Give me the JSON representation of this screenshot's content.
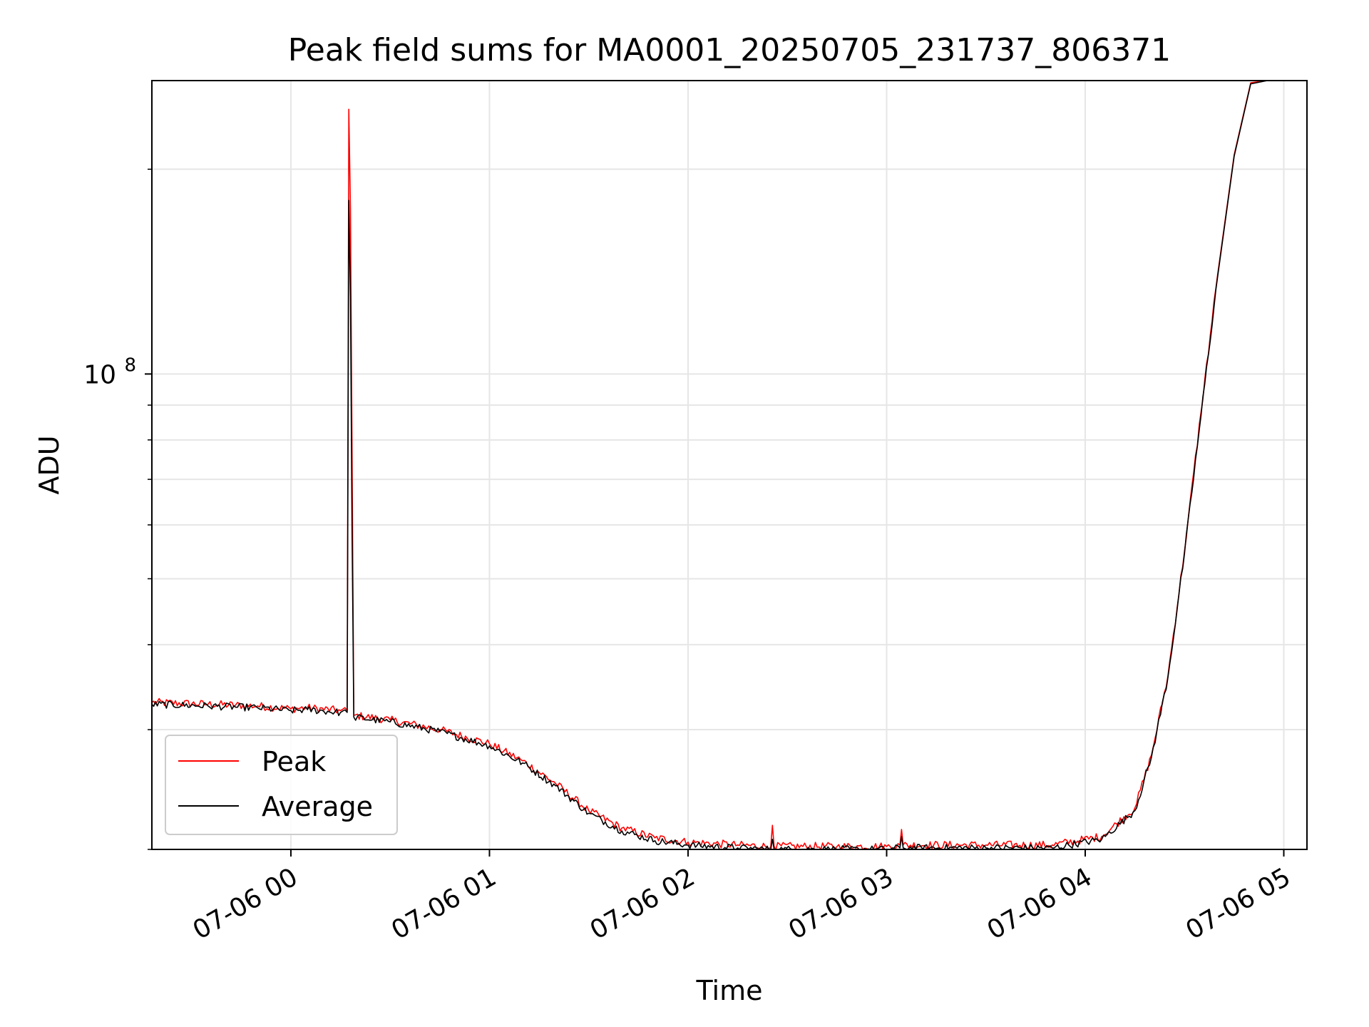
{
  "chart_data": {
    "type": "line",
    "title": "Peak field sums for MA0001_20250705_231737_806371",
    "xlabel": "Time",
    "ylabel": "ADU",
    "yscale": "log",
    "x_range": [
      "07-05 23:18",
      "07-06 05:07"
    ],
    "ylim": [
      20000000,
      270000000
    ],
    "x_ticks": [
      "07-06 00",
      "07-06 01",
      "07-06 02",
      "07-06 03",
      "07-06 04",
      "07-06 05"
    ],
    "y_ticks": [
      {
        "label_base": "10",
        "label_exp": "8",
        "value": 100000000
      }
    ],
    "grid": true,
    "legend_position": "lower-left",
    "series": [
      {
        "name": "Peak",
        "color": "#ff0000",
        "points": [
          [
            "07-05 23:18",
            32900000
          ],
          [
            "07-05 23:35",
            32700000
          ],
          [
            "07-05 23:50",
            32500000
          ],
          [
            "07-06 00:00",
            32200000
          ],
          [
            "07-06 00:05",
            32300000
          ],
          [
            "07-06 00:15",
            32000000
          ],
          [
            "07-06 00:17",
            32000000
          ],
          [
            "07-06 00:17:30",
            245000000
          ],
          [
            "07-06 00:18",
            175000000
          ],
          [
            "07-06 00:18:30",
            75000000
          ],
          [
            "07-06 00:19",
            31500000
          ],
          [
            "07-06 00:30",
            31000000
          ],
          [
            "07-06 00:45",
            30000000
          ],
          [
            "07-06 01:00",
            28600000
          ],
          [
            "07-06 01:10",
            27000000
          ],
          [
            "07-06 01:20",
            25000000
          ],
          [
            "07-06 01:30",
            22800000
          ],
          [
            "07-06 01:40",
            21500000
          ],
          [
            "07-06 01:50",
            20800000
          ],
          [
            "07-06 02:00",
            20500000
          ],
          [
            "07-06 02:15",
            20300000
          ],
          [
            "07-06 02:25",
            20200000
          ],
          [
            "07-06 02:25:30",
            21700000
          ],
          [
            "07-06 02:26",
            20200000
          ],
          [
            "07-06 02:45",
            20200000
          ],
          [
            "07-06 03:00",
            20200000
          ],
          [
            "07-06 03:04",
            20300000
          ],
          [
            "07-06 03:04:30",
            21400000
          ],
          [
            "07-06 03:05",
            20300000
          ],
          [
            "07-06 03:30",
            20300000
          ],
          [
            "07-06 03:50",
            20300000
          ],
          [
            "07-06 04:05",
            20900000
          ],
          [
            "07-06 04:15",
            23000000
          ],
          [
            "07-06 04:20",
            27500000
          ],
          [
            "07-06 04:25",
            36000000
          ],
          [
            "07-06 04:30",
            55000000
          ],
          [
            "07-06 04:35",
            88000000
          ],
          [
            "07-06 04:40",
            140000000
          ],
          [
            "07-06 04:45",
            210000000
          ],
          [
            "07-06 04:50",
            268000000
          ],
          [
            "07-06 04:55",
            270000000
          ]
        ]
      },
      {
        "name": "Average",
        "color": "#000000",
        "points": [
          [
            "07-05 23:18",
            32700000
          ],
          [
            "07-05 23:35",
            32500000
          ],
          [
            "07-05 23:50",
            32300000
          ],
          [
            "07-06 00:00",
            32000000
          ],
          [
            "07-06 00:05",
            32100000
          ],
          [
            "07-06 00:15",
            31800000
          ],
          [
            "07-06 00:17",
            31800000
          ],
          [
            "07-06 00:17:30",
            180000000
          ],
          [
            "07-06 00:18",
            130000000
          ],
          [
            "07-06 00:18:30",
            58000000
          ],
          [
            "07-06 00:19",
            31300000
          ],
          [
            "07-06 00:30",
            30800000
          ],
          [
            "07-06 00:45",
            29800000
          ],
          [
            "07-06 01:00",
            28400000
          ],
          [
            "07-06 01:10",
            26800000
          ],
          [
            "07-06 01:20",
            24800000
          ],
          [
            "07-06 01:30",
            22600000
          ],
          [
            "07-06 01:40",
            21300000
          ],
          [
            "07-06 01:50",
            20600000
          ],
          [
            "07-06 02:00",
            20300000
          ],
          [
            "07-06 02:15",
            20100000
          ],
          [
            "07-06 02:25",
            20000000
          ],
          [
            "07-06 02:25:30",
            20700000
          ],
          [
            "07-06 02:26",
            20000000
          ],
          [
            "07-06 02:45",
            20000000
          ],
          [
            "07-06 03:00",
            20000000
          ],
          [
            "07-06 03:04",
            20100000
          ],
          [
            "07-06 03:04:30",
            20900000
          ],
          [
            "07-06 03:05",
            20100000
          ],
          [
            "07-06 03:30",
            20100000
          ],
          [
            "07-06 03:50",
            20100000
          ],
          [
            "07-06 04:05",
            20700000
          ],
          [
            "07-06 04:15",
            22800000
          ],
          [
            "07-06 04:20",
            27300000
          ],
          [
            "07-06 04:25",
            35800000
          ],
          [
            "07-06 04:30",
            54500000
          ],
          [
            "07-06 04:35",
            87000000
          ],
          [
            "07-06 04:40",
            139000000
          ],
          [
            "07-06 04:45",
            209000000
          ],
          [
            "07-06 04:50",
            267000000
          ],
          [
            "07-06 04:55",
            270000000
          ]
        ]
      }
    ]
  }
}
